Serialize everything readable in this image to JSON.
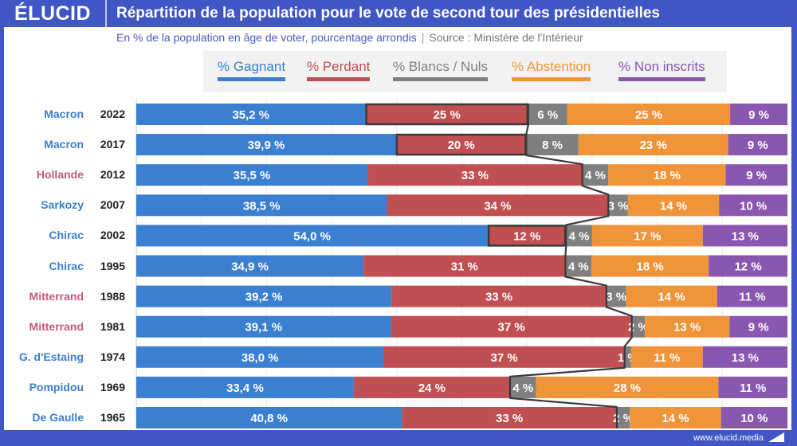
{
  "header": {
    "logo": "ÉLUCID",
    "title": "Répartition de la population pour le vote de second tour des présidentielles"
  },
  "subtitle": {
    "text": "En % de la population en âge de voter, pourcentage arrondis",
    "separator": "|",
    "source": "Source : Ministère de l'Intérieur"
  },
  "footer": {
    "url": "www.elucid.media"
  },
  "colors": {
    "gagnant": "#3a7fd0",
    "perdant": "#c04f51",
    "blancs": "#7f7f7f",
    "abstention": "#f0943a",
    "non_inscrits": "#8a57b0",
    "name_right": "#3a7fd0",
    "name_left": "#c85a78",
    "frame": "#3f56c4"
  },
  "chart_data": {
    "type": "bar",
    "orientation": "horizontal",
    "stacked": true,
    "title": "Répartition de la population pour le vote de second tour des présidentielles",
    "subtitle": "En % de la population en âge de voter, pourcentage arrondis | Source : Ministère de l'Intérieur",
    "xlim": [
      0,
      100
    ],
    "grid": true,
    "legend_position": "top",
    "legend": [
      "% Gagnant",
      "% Perdant",
      "% Blancs / Nuls",
      "% Abstention",
      "% Non inscrits"
    ],
    "categories": [
      {
        "name": "Macron",
        "year": "2022",
        "camp": "right"
      },
      {
        "name": "Macron",
        "year": "2017",
        "camp": "right"
      },
      {
        "name": "Hollande",
        "year": "2012",
        "camp": "left"
      },
      {
        "name": "Sarkozy",
        "year": "2007",
        "camp": "right"
      },
      {
        "name": "Chirac",
        "year": "2002",
        "camp": "right"
      },
      {
        "name": "Chirac",
        "year": "1995",
        "camp": "right"
      },
      {
        "name": "Mitterrand",
        "year": "1988",
        "camp": "left"
      },
      {
        "name": "Mitterrand",
        "year": "1981",
        "camp": "left"
      },
      {
        "name": "G. d'Estaing",
        "year": "1974",
        "camp": "right"
      },
      {
        "name": "Pompidou",
        "year": "1969",
        "camp": "right"
      },
      {
        "name": "De Gaulle",
        "year": "1965",
        "camp": "right"
      }
    ],
    "series": [
      {
        "name": "% Gagnant",
        "key": "gagnant",
        "values": [
          35.2,
          39.9,
          35.5,
          38.5,
          54.0,
          34.9,
          39.2,
          39.1,
          38.0,
          33.4,
          40.8
        ],
        "labels": [
          "35,2 %",
          "39,9 %",
          "35,5 %",
          "38,5 %",
          "54,0 %",
          "34,9 %",
          "39,2 %",
          "39,1 %",
          "38,0 %",
          "33,4 %",
          "40,8 %"
        ]
      },
      {
        "name": "% Perdant",
        "key": "perdant",
        "values": [
          25,
          20,
          33,
          34,
          12,
          31,
          33,
          37,
          37,
          24,
          33
        ],
        "labels": [
          "25 %",
          "20 %",
          "33 %",
          "34 %",
          "12 %",
          "31 %",
          "33 %",
          "37 %",
          "37 %",
          "24 %",
          "33 %"
        ],
        "highlighted_rows": [
          0,
          1,
          4
        ]
      },
      {
        "name": "% Blancs / Nuls",
        "key": "blancs",
        "values": [
          6,
          8,
          4,
          3,
          4,
          4,
          3,
          2,
          1,
          4,
          2
        ],
        "labels": [
          "6 %",
          "8 %",
          "4 %",
          "3 %",
          "4 %",
          "4 %",
          "3 %",
          "2 %",
          "1 %",
          "4 %",
          "2 %"
        ]
      },
      {
        "name": "% Abstention",
        "key": "abstention",
        "values": [
          25,
          23,
          18,
          14,
          17,
          18,
          14,
          13,
          11,
          28,
          14
        ],
        "labels": [
          "25 %",
          "23 %",
          "18 %",
          "14 %",
          "17 %",
          "18 %",
          "14 %",
          "13 %",
          "11 %",
          "28 %",
          "14 %"
        ]
      },
      {
        "name": "% Non inscrits",
        "key": "non_inscrits",
        "values": [
          9,
          9,
          9,
          10,
          13,
          12,
          11,
          9,
          13,
          11,
          10
        ],
        "labels": [
          "9 %",
          "9 %",
          "9 %",
          "10 %",
          "13 %",
          "12 %",
          "11 %",
          "9 %",
          "13 %",
          "11 %",
          "10 %"
        ]
      }
    ],
    "annotation": "Connector line joining the end of the 'Perdant' segment across years"
  }
}
